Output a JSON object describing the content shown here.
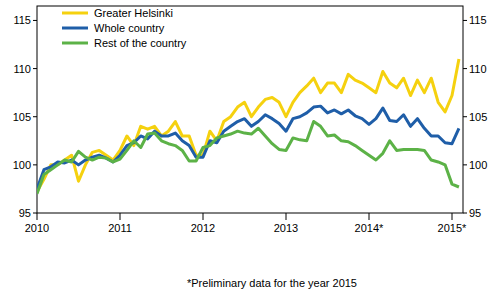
{
  "chart_data": {
    "type": "line",
    "annotations": [
      "*Preliminary data for the year 2015"
    ],
    "categories": [
      "2010",
      null,
      null,
      null,
      null,
      null,
      null,
      null,
      null,
      null,
      null,
      null,
      "2011",
      null,
      null,
      null,
      null,
      null,
      null,
      null,
      null,
      null,
      null,
      null,
      "2012",
      null,
      null,
      null,
      null,
      null,
      null,
      null,
      null,
      null,
      null,
      null,
      "2013",
      null,
      null,
      null,
      null,
      null,
      null,
      null,
      null,
      null,
      null,
      null,
      "2014*",
      null,
      null,
      null,
      null,
      null,
      null,
      null,
      null,
      null,
      null,
      null,
      "2015*",
      null
    ],
    "series": [
      {
        "name": "Greater Helsinki",
        "color": "#f5d10f",
        "values": [
          97.2,
          98.5,
          100,
          100,
          100.5,
          101,
          98.3,
          100,
          101.3,
          101.5,
          101,
          100.5,
          101.5,
          103,
          102,
          104,
          103.7,
          104,
          103,
          103.5,
          104.5,
          103,
          103,
          101,
          101,
          103.5,
          102.5,
          104.5,
          105,
          106,
          106.5,
          105,
          106,
          106.8,
          107,
          106.5,
          105,
          106.5,
          107.5,
          108.2,
          109,
          107.5,
          108.5,
          108.5,
          107.5,
          109.4,
          108.8,
          108.5,
          108,
          107.5,
          109.7,
          108.5,
          108,
          109,
          107.2,
          108.8,
          107.5,
          109,
          106.5,
          105.5,
          107.2,
          111
        ]
      },
      {
        "name": "Whole country",
        "color": "#1f5ea8",
        "values": [
          97.5,
          99.5,
          99.8,
          100.3,
          100.2,
          100.5,
          100,
          100.5,
          100.8,
          101,
          100.7,
          100.3,
          101,
          102,
          102.3,
          103,
          102.7,
          103.5,
          103,
          103,
          103.3,
          102.5,
          102,
          100.8,
          100.8,
          102.5,
          102.3,
          103.5,
          104,
          104.5,
          104.8,
          104,
          104.5,
          105.2,
          104.8,
          104.3,
          103.5,
          104.8,
          105,
          105.4,
          106,
          106.1,
          105.4,
          105.7,
          105.3,
          105.7,
          105.1,
          104.8,
          104.2,
          104.8,
          105.9,
          104.6,
          104.5,
          105.2,
          104,
          104.8,
          103.8,
          103,
          103,
          102.3,
          102.2,
          103.8
        ]
      },
      {
        "name": "Rest of the country",
        "color": "#5cb247",
        "values": [
          97,
          99,
          99.5,
          100,
          100.5,
          100.3,
          101.4,
          100.8,
          100.5,
          100.8,
          100.7,
          100.3,
          100.6,
          101.5,
          102.5,
          101.8,
          103.2,
          103.3,
          102.5,
          102.2,
          102,
          101.5,
          100.4,
          100.4,
          101.8,
          102,
          102.8,
          103,
          103.2,
          103.5,
          103.3,
          103.2,
          103.8,
          103,
          102.2,
          101.6,
          101.5,
          102.8,
          102.6,
          102.5,
          104.5,
          104,
          103,
          103.1,
          102.5,
          102.4,
          102,
          101.5,
          101,
          100.5,
          101.2,
          102.5,
          101.5,
          101.6,
          101.6,
          101.6,
          101.5,
          100.5,
          100.3,
          100,
          98,
          97.7
        ]
      }
    ],
    "ylim": [
      95,
      116.5
    ],
    "yticks": [
      95,
      100,
      105,
      110,
      115
    ],
    "grid": false,
    "legend": "top-left"
  }
}
